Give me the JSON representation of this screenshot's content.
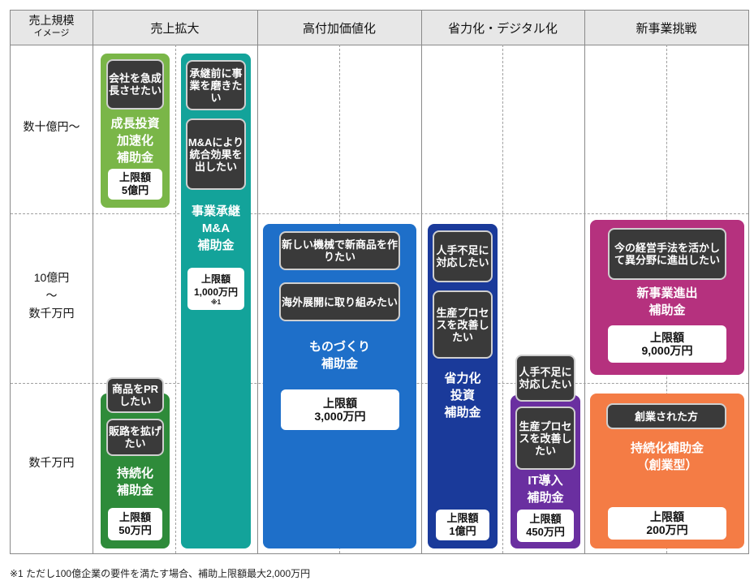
{
  "header": {
    "corner_line1": "売上規模",
    "corner_line2": "イメージ",
    "categories": [
      "売上拡大",
      "高付加価値化",
      "省力化・デジタル化",
      "新事業挑戦"
    ]
  },
  "rows": [
    "数十億円～",
    "10億円",
    "～",
    "数千万円",
    "数千万円"
  ],
  "colors": {
    "growth": "#7ab648",
    "succession": "#13a39a",
    "sustain": "#2e8b3a",
    "monozukuri": "#1e6fc9",
    "shoryoku": "#1a3a9a",
    "it": "#6a2fa0",
    "shinjigyo": "#b5317e",
    "sogyo": "#f47c45"
  },
  "cards": {
    "growth": {
      "need": "会社を急成長させたい",
      "title": [
        "成長投資",
        "加速化",
        "補助金"
      ],
      "cap": [
        "上限額",
        "5億円"
      ]
    },
    "succession": {
      "needs": [
        "承継前に事業を磨きたい",
        "M&Aにより統合効果を出したい"
      ],
      "title": [
        "事業承継",
        "M&A",
        "補助金"
      ],
      "cap": [
        "上限額",
        "1,000万円",
        "※1"
      ]
    },
    "sustain": {
      "needs": [
        "商品をPRしたい",
        "販路を拡げたい"
      ],
      "title": [
        "持続化",
        "補助金"
      ],
      "cap": [
        "上限額",
        "50万円"
      ]
    },
    "monozukuri": {
      "needs": [
        "新しい機械で新商品を作りたい",
        "海外展開に取り組みたい"
      ],
      "title": [
        "ものづくり",
        "補助金"
      ],
      "cap": [
        "上限額",
        "3,000万円"
      ]
    },
    "shoryoku": {
      "needs": [
        "人手不足に対応したい",
        "生産プロセスを改善したい"
      ],
      "title": [
        "省力化",
        "投資",
        "補助金"
      ],
      "cap": [
        "上限額",
        "1億円"
      ]
    },
    "it": {
      "needs": [
        "人手不足に対応したい",
        "生産プロセスを改善したい"
      ],
      "title": [
        "IT導入",
        "補助金"
      ],
      "cap": [
        "上限額",
        "450万円"
      ]
    },
    "shinjigyo": {
      "need": "今の経営手法を活かして異分野に進出したい",
      "title": [
        "新事業進出",
        "補助金"
      ],
      "cap": [
        "上限額",
        "9,000万円"
      ]
    },
    "sogyo": {
      "need": "創業された方",
      "title": [
        "持続化補助金",
        "（創業型）"
      ],
      "cap": [
        "上限額",
        "200万円"
      ]
    }
  },
  "footnote": "※1 ただし100億企業の要件を満たす場合、補助上限額最大2,000万円"
}
